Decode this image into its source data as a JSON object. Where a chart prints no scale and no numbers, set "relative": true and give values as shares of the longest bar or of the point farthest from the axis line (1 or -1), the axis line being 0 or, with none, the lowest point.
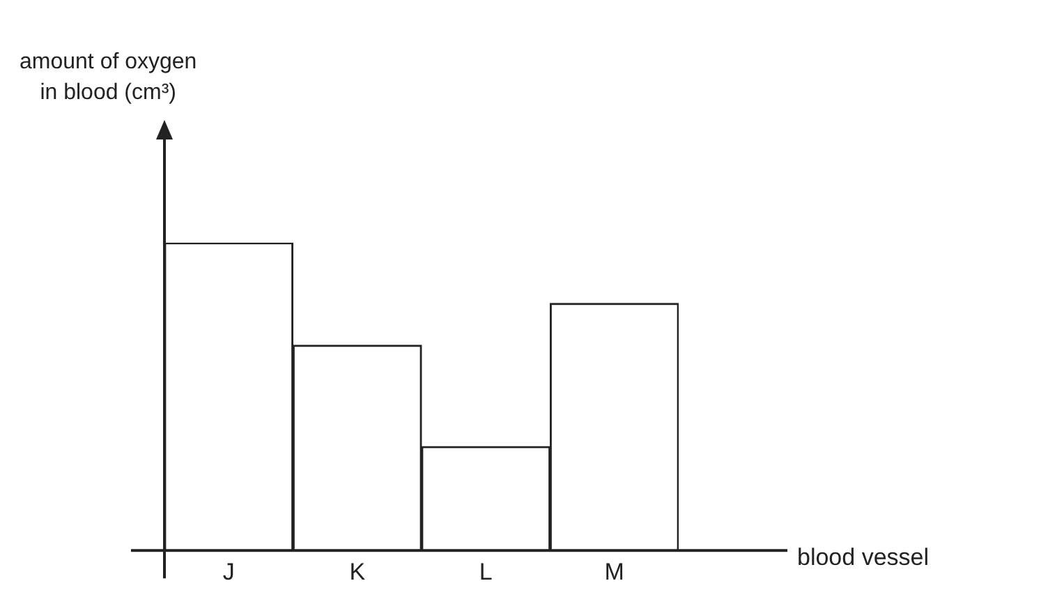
{
  "chart_data": {
    "type": "bar",
    "relative": true,
    "annotations": [
      "amount of oxygen\nin blood (cm³)"
    ],
    "xlabel": "blood vessel",
    "categories": [
      "J",
      "K",
      "L",
      "M"
    ],
    "values": [
      1,
      0.667,
      0.338,
      0.803
    ],
    "color": "#ffffff",
    "grid": false,
    "legend": false
  }
}
